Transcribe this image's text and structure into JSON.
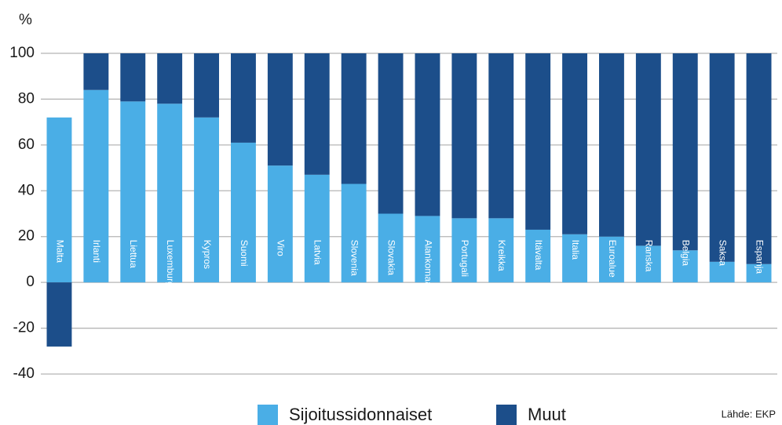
{
  "chart_data": {
    "type": "stacked_bar",
    "y_axis_label": "%",
    "source": "Lähde: EKP",
    "categories": [
      "Malta",
      "Irlanti",
      "Liettua",
      "Luxemburg",
      "Kypros",
      "Suomi",
      "Viro",
      "Latvia",
      "Slovenia",
      "Slovakia",
      "Alankomaat",
      "Portugali",
      "Kreikka",
      "Itävalta",
      "Italia",
      "Euroalue",
      "Ranska",
      "Belgia",
      "Saksa",
      "Espanja"
    ],
    "series": [
      {
        "name": "Sijoitussidonnaiset",
        "color": "#4aaee6",
        "values": [
          72,
          84,
          79,
          78,
          72,
          61,
          51,
          47,
          43,
          30,
          29,
          28,
          28,
          23,
          21,
          20,
          16,
          14,
          9,
          8
        ]
      },
      {
        "name": "Muut",
        "color": "#1c4e8a",
        "values": [
          -28,
          16,
          21,
          22,
          28,
          39,
          49,
          53,
          57,
          70,
          71,
          72,
          72,
          77,
          79,
          80,
          84,
          86,
          91,
          92
        ]
      }
    ],
    "ylim": [
      -40,
      100
    ],
    "yticks": [
      -40,
      -20,
      0,
      20,
      40,
      60,
      80,
      100
    ],
    "grid": true
  }
}
